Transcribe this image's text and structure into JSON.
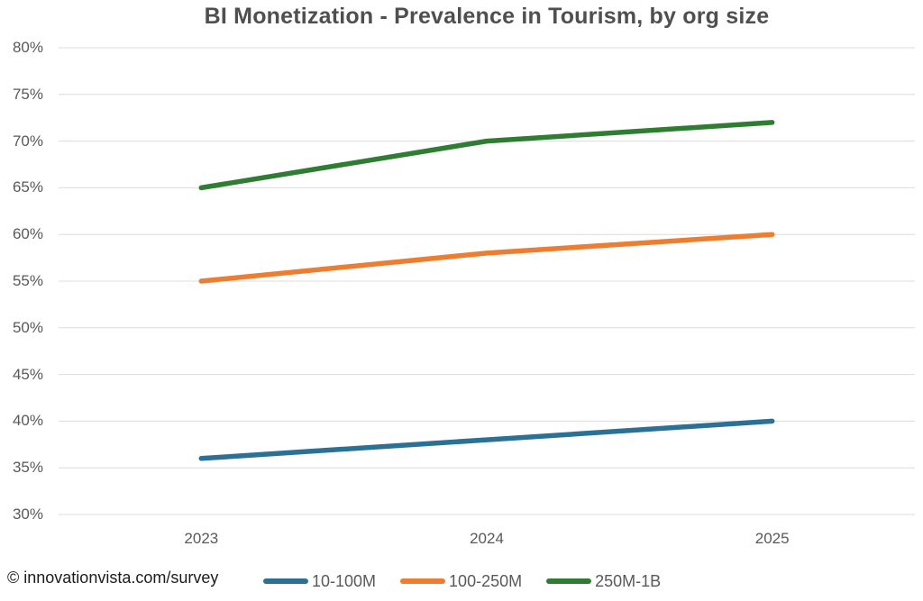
{
  "page": {
    "background": "#ffffff"
  },
  "chart_data": {
    "type": "line",
    "title": "BI Monetization - Prevalence in Tourism, by org size",
    "categories": [
      "2023",
      "2024",
      "2025"
    ],
    "series": [
      {
        "name": "10-100M",
        "values": [
          36,
          38,
          40
        ],
        "color": "#2b7095"
      },
      {
        "name": "100-250M",
        "values": [
          55,
          58,
          60
        ],
        "color": "#ed7d31"
      },
      {
        "name": "250M-1B",
        "values": [
          65,
          70,
          72
        ],
        "color": "#2e7d32"
      }
    ],
    "ylabel": "",
    "xlabel": "",
    "ylim": [
      30,
      80
    ],
    "ytick_step": 5,
    "ytick_suffix": "%",
    "grid": true,
    "gridline_color": "#dcdcdc",
    "axis_text_color": "#595959",
    "title_color": "#4f4f4f",
    "legend_position": "bottom",
    "line_width": 5.5
  },
  "footer": {
    "source": "© innovationvista.com/survey"
  }
}
